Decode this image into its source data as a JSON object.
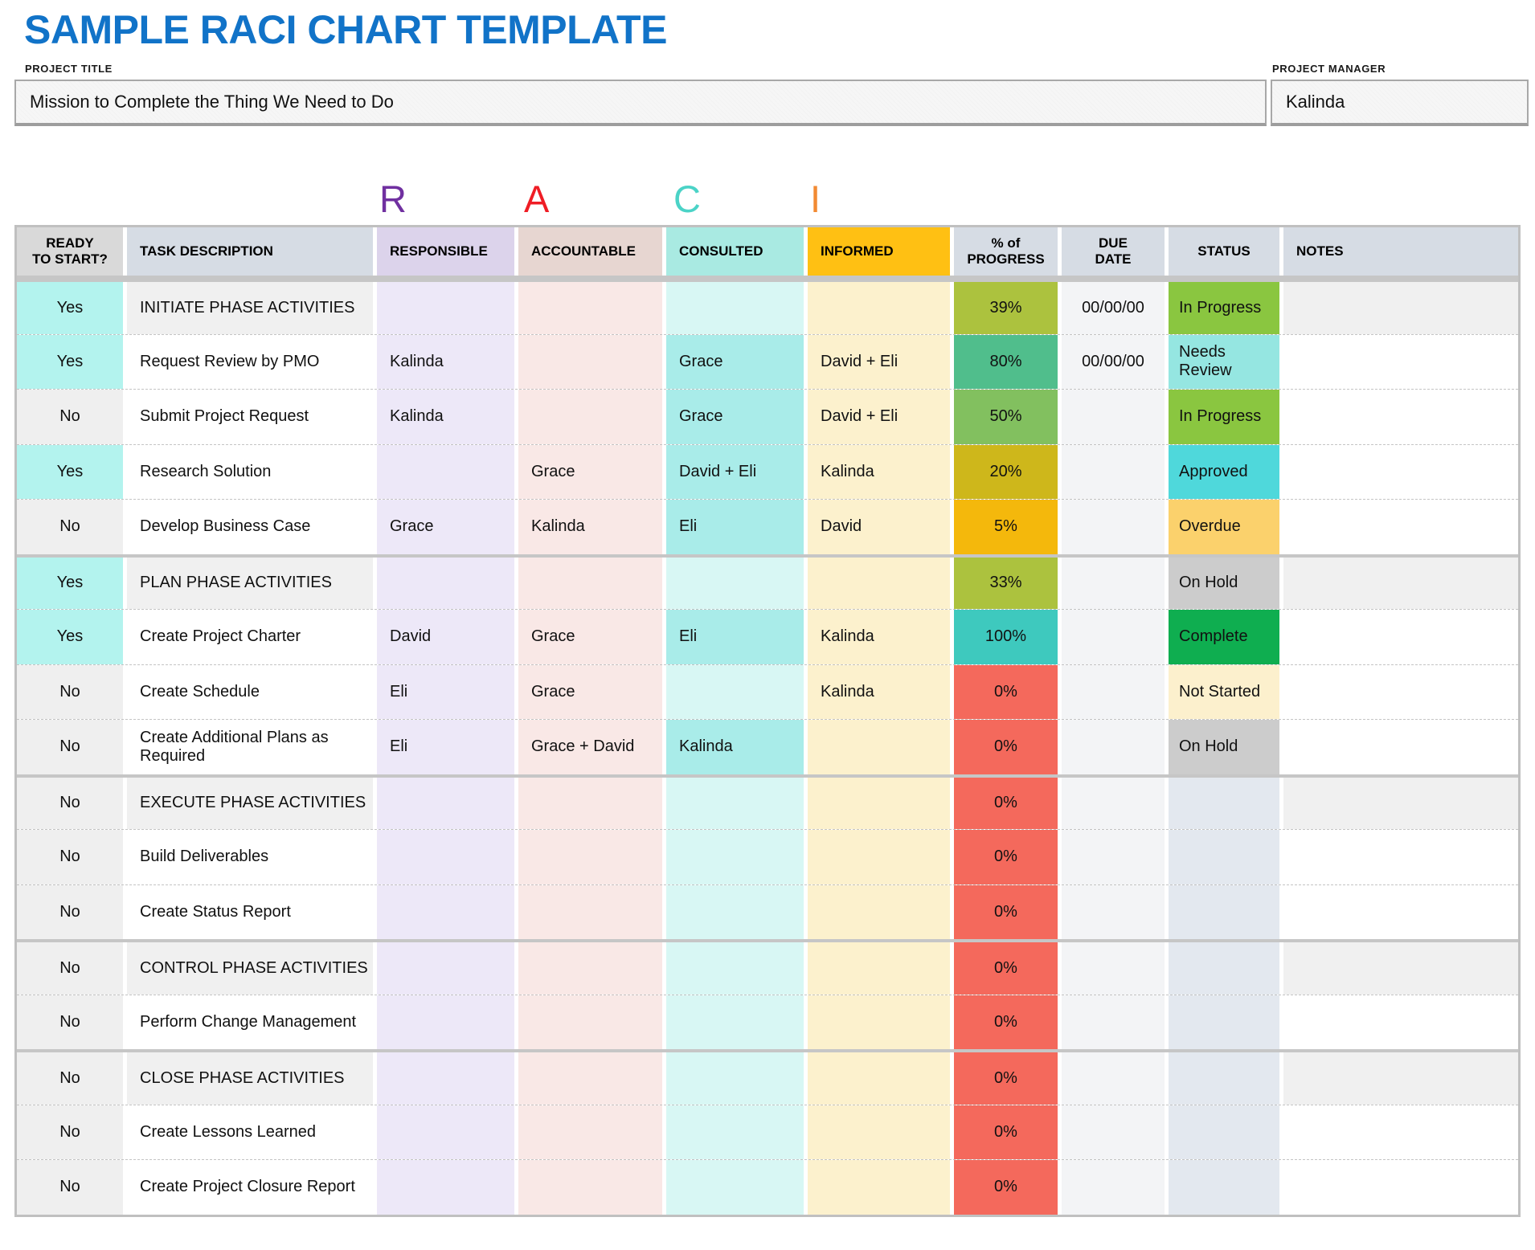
{
  "title": "SAMPLE RACI CHART TEMPLATE",
  "title_color": "#1173C8",
  "fields": {
    "project_title_label": "PROJECT TITLE",
    "project_title_value": "Mission to Complete the Thing We Need to Do",
    "project_manager_label": "PROJECT MANAGER",
    "project_manager_value": "Kalinda"
  },
  "raci": {
    "letters": [
      {
        "char": "R",
        "color": "#7030A0"
      },
      {
        "char": "A",
        "color": "#EF1D25"
      },
      {
        "char": "C",
        "color": "#4BD3C7"
      },
      {
        "char": "I",
        "color": "#F28A33"
      }
    ]
  },
  "colors": {
    "ready_yes": "#B3F3EE",
    "ready_no": "#EFEFEF",
    "responsible": "#EDE8F8",
    "accountable": "#F9E8E6",
    "consulted_empty": "#D8F7F4",
    "consulted_filled": "#A9ECE9",
    "informed": "#FCF1CD",
    "due": "#F3F4F6",
    "status_empty": "#E3E8EF",
    "section_bg": "#F0F0F0",
    "row_bg": "#FFFFFF",
    "border_outer": "#C0C0C0",
    "border_section": "#C6C6C6"
  },
  "table": {
    "headers": [
      {
        "key": "ready",
        "label": "READY\nTO START?",
        "color": "#D9D9D9",
        "align": "center"
      },
      {
        "key": "task",
        "label": "TASK DESCRIPTION",
        "color": "#D6DCE4",
        "align": "left"
      },
      {
        "key": "responsible",
        "label": "RESPONSIBLE",
        "color": "#DCD3EB",
        "align": "left"
      },
      {
        "key": "accountable",
        "label": "ACCOUNTABLE",
        "color": "#E7D6D1",
        "align": "left"
      },
      {
        "key": "consulted",
        "label": "CONSULTED",
        "color": "#A9EAE2",
        "align": "left"
      },
      {
        "key": "informed",
        "label": "INFORMED",
        "color": "#FFC013",
        "align": "left"
      },
      {
        "key": "progress",
        "label": "% of\nPROGRESS",
        "color": "#D6DCE4",
        "align": "center"
      },
      {
        "key": "due",
        "label": "DUE\nDATE",
        "color": "#D6DCE4",
        "align": "center"
      },
      {
        "key": "status",
        "label": "STATUS",
        "color": "#D6DCE4",
        "align": "center"
      },
      {
        "key": "notes",
        "label": "NOTES",
        "color": "#D6DCE4",
        "align": "left"
      }
    ],
    "rows": [
      {
        "ready": "Yes",
        "task": "INITIATE PHASE ACTIVITIES",
        "responsible": "",
        "accountable": "",
        "consulted": "",
        "informed": "",
        "progress": "39%",
        "progress_color": "#ACC23E",
        "due": "00/00/00",
        "status": "In Progress",
        "status_color": "#8AC640",
        "notes": "",
        "section": true
      },
      {
        "ready": "Yes",
        "task": "Request Review by PMO",
        "responsible": "Kalinda",
        "accountable": "",
        "consulted": "Grace",
        "informed": "David + Eli",
        "progress": "80%",
        "progress_color": "#50BE8C",
        "due": "00/00/00",
        "status": "Needs Review",
        "status_color": "#95E6E1",
        "notes": "",
        "section": false
      },
      {
        "ready": "No",
        "task": "Submit Project Request",
        "responsible": "Kalinda",
        "accountable": "",
        "consulted": "Grace",
        "informed": "David + Eli",
        "progress": "50%",
        "progress_color": "#82C05F",
        "due": "",
        "status": "In Progress",
        "status_color": "#8AC640",
        "notes": "",
        "section": false
      },
      {
        "ready": "Yes",
        "task": "Research Solution",
        "responsible": "",
        "accountable": "Grace",
        "consulted": "David + Eli",
        "informed": "Kalinda",
        "progress": "20%",
        "progress_color": "#CEB71B",
        "due": "",
        "status": "Approved",
        "status_color": "#4FD8DB",
        "notes": "",
        "section": false
      },
      {
        "ready": "No",
        "task": "Develop Business Case",
        "responsible": "Grace",
        "accountable": "Kalinda",
        "consulted": "Eli",
        "informed": "David",
        "progress": "5%",
        "progress_color": "#F4B80C",
        "due": "",
        "status": "Overdue",
        "status_color": "#FBD16C",
        "notes": "",
        "section": false
      },
      {
        "ready": "Yes",
        "task": "PLAN PHASE ACTIVITIES",
        "responsible": "",
        "accountable": "",
        "consulted": "",
        "informed": "",
        "progress": "33%",
        "progress_color": "#ACC23E",
        "due": "",
        "status": "On Hold",
        "status_color": "#CCCCCC",
        "notes": "",
        "section": true
      },
      {
        "ready": "Yes",
        "task": "Create Project Charter",
        "responsible": "David",
        "accountable": "Grace",
        "consulted": "Eli",
        "informed": "Kalinda",
        "progress": "100%",
        "progress_color": "#3EC9BE",
        "due": "",
        "status": "Complete",
        "status_color": "#0FAE50",
        "notes": "",
        "section": false
      },
      {
        "ready": "No",
        "task": "Create Schedule",
        "responsible": "Eli",
        "accountable": "Grace",
        "consulted": "",
        "informed": "Kalinda",
        "progress": "0%",
        "progress_color": "#F4695C",
        "due": "",
        "status": "Not Started",
        "status_color": "#FCF0CD",
        "notes": "",
        "section": false
      },
      {
        "ready": "No",
        "task": "Create Additional Plans as Required",
        "responsible": "Eli",
        "accountable": "Grace + David",
        "consulted": "Kalinda",
        "informed": "",
        "progress": "0%",
        "progress_color": "#F4695C",
        "due": "",
        "status": "On Hold",
        "status_color": "#CCCCCC",
        "notes": "",
        "section": false
      },
      {
        "ready": "No",
        "task": "EXECUTE PHASE ACTIVITIES",
        "responsible": "",
        "accountable": "",
        "consulted": "",
        "informed": "",
        "progress": "0%",
        "progress_color": "#F4695C",
        "due": "",
        "status": "",
        "status_color": "",
        "notes": "",
        "section": true
      },
      {
        "ready": "No",
        "task": "Build Deliverables",
        "responsible": "",
        "accountable": "",
        "consulted": "",
        "informed": "",
        "progress": "0%",
        "progress_color": "#F4695C",
        "due": "",
        "status": "",
        "status_color": "",
        "notes": "",
        "section": false
      },
      {
        "ready": "No",
        "task": "Create Status Report",
        "responsible": "",
        "accountable": "",
        "consulted": "",
        "informed": "",
        "progress": "0%",
        "progress_color": "#F4695C",
        "due": "",
        "status": "",
        "status_color": "",
        "notes": "",
        "section": false
      },
      {
        "ready": "No",
        "task": "CONTROL PHASE ACTIVITIES",
        "responsible": "",
        "accountable": "",
        "consulted": "",
        "informed": "",
        "progress": "0%",
        "progress_color": "#F4695C",
        "due": "",
        "status": "",
        "status_color": "",
        "notes": "",
        "section": true
      },
      {
        "ready": "No",
        "task": "Perform Change Management",
        "responsible": "",
        "accountable": "",
        "consulted": "",
        "informed": "",
        "progress": "0%",
        "progress_color": "#F4695C",
        "due": "",
        "status": "",
        "status_color": "",
        "notes": "",
        "section": false
      },
      {
        "ready": "No",
        "task": "CLOSE PHASE ACTIVITIES",
        "responsible": "",
        "accountable": "",
        "consulted": "",
        "informed": "",
        "progress": "0%",
        "progress_color": "#F4695C",
        "due": "",
        "status": "",
        "status_color": "",
        "notes": "",
        "section": true
      },
      {
        "ready": "No",
        "task": "Create Lessons Learned",
        "responsible": "",
        "accountable": "",
        "consulted": "",
        "informed": "",
        "progress": "0%",
        "progress_color": "#F4695C",
        "due": "",
        "status": "",
        "status_color": "",
        "notes": "",
        "section": false
      },
      {
        "ready": "No",
        "task": "Create Project Closure Report",
        "responsible": "",
        "accountable": "",
        "consulted": "",
        "informed": "",
        "progress": "0%",
        "progress_color": "#F4695C",
        "due": "",
        "status": "",
        "status_color": "",
        "notes": "",
        "section": false
      }
    ]
  }
}
